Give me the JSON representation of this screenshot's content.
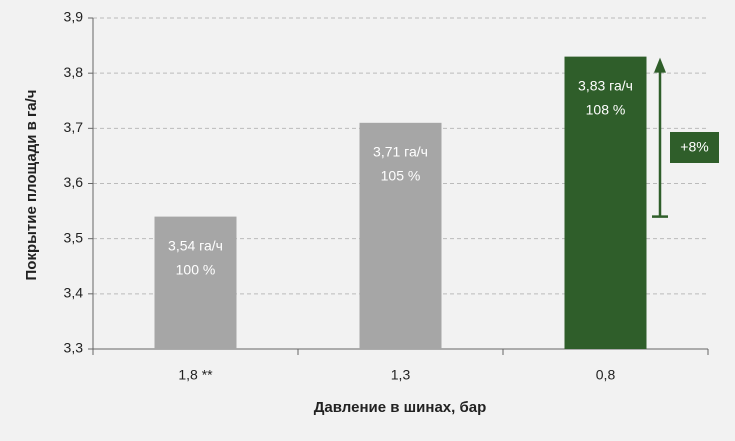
{
  "chart_data": {
    "type": "bar",
    "y_label": "Покрытие площади в га/ч",
    "x_label": "Давление в шинах, бар",
    "categories": [
      "1,8 **",
      "1,3",
      "0,8"
    ],
    "values": [
      3.54,
      3.71,
      3.83
    ],
    "value_labels": [
      "3,54 га/ч",
      "3,71 га/ч",
      "3,83 га/ч"
    ],
    "percent_labels": [
      "100 %",
      "105 %",
      "108 %"
    ],
    "colors": [
      "#a6a6a6",
      "#a6a6a6",
      "#2f5e2a"
    ],
    "annotation": "+8%",
    "ylim": [
      3.3,
      3.9
    ],
    "yticks": [
      {
        "value": 3.3,
        "label": "3,3"
      },
      {
        "value": 3.4,
        "label": "3,4"
      },
      {
        "value": 3.5,
        "label": "3,5"
      },
      {
        "value": 3.6,
        "label": "3,6"
      },
      {
        "value": 3.7,
        "label": "3,7"
      },
      {
        "value": 3.8,
        "label": "3,8"
      },
      {
        "value": 3.9,
        "label": "3,9"
      }
    ],
    "grid": true
  }
}
